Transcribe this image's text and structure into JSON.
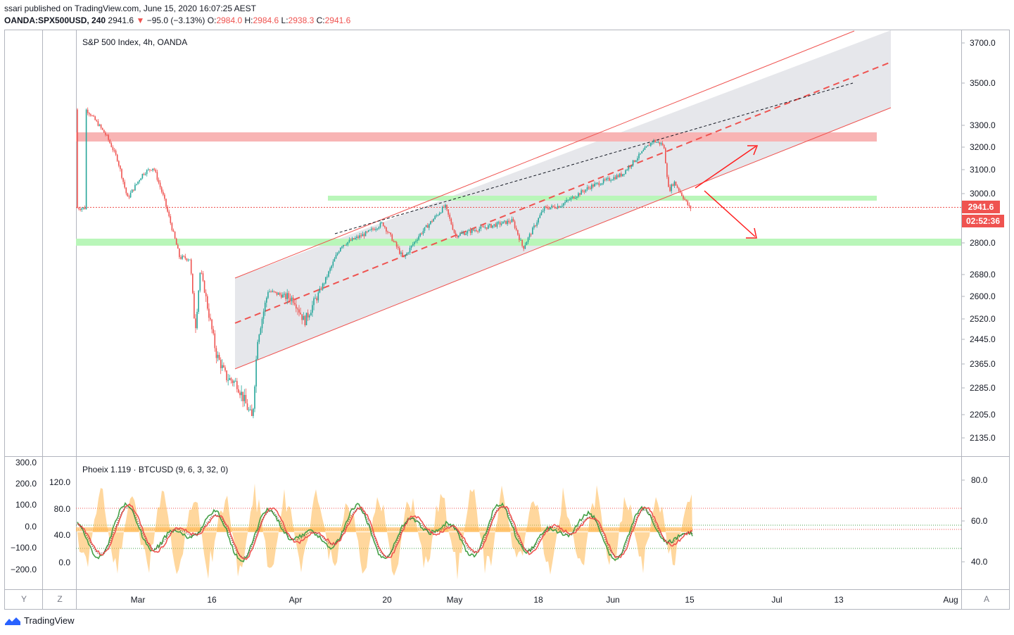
{
  "header": {
    "publish_line": "ssari published on TradingView.com, June 15, 2020 16:07:25 AEST",
    "symbol": "OANDA:SPX500USD, 240",
    "last": "2941.6",
    "change": "−95.0 (−3.13%)",
    "o_label": "O:",
    "o": "2984.0",
    "h_label": "H:",
    "h": "2984.6",
    "l_label": "L:",
    "l": "2938.3",
    "c_label": "C:",
    "c": "2941.6"
  },
  "chart_data": [
    {
      "type": "candlestick",
      "title": "S&P 500 Index, 4h, OANDA",
      "y_ticks": [
        "3700.0",
        "3500.0",
        "3300.0",
        "3200.0",
        "3100.0",
        "3000.0",
        "2800.0",
        "2680.0",
        "2600.0",
        "2520.0",
        "2445.0",
        "2365.0",
        "2285.0",
        "2205.0",
        "2135.0"
      ],
      "x_ticks": [
        "Mar",
        "16",
        "Apr",
        "20",
        "May",
        "18",
        "Jun",
        "15",
        "Jul",
        "13",
        "Aug"
      ],
      "price_tag": "2941.6",
      "countdown_tag": "02:52:36",
      "ylim": [
        2100,
        3720
      ],
      "close_path": [
        [
          "Feb 20",
          3375
        ],
        [
          "Feb 21",
          3350
        ],
        [
          "Feb 24",
          3250
        ],
        [
          "Feb 26",
          3150
        ],
        [
          "Feb 28",
          2980
        ],
        [
          "Mar 2",
          3085
        ],
        [
          "Mar 4",
          3110
        ],
        [
          "Mar 6",
          2980
        ],
        [
          "Mar 9",
          2745
        ],
        [
          "Mar 11",
          2740
        ],
        [
          "Mar 12",
          2480
        ],
        [
          "Mar 13",
          2700
        ],
        [
          "Mar 16",
          2400
        ],
        [
          "Mar 18",
          2320
        ],
        [
          "Mar 20",
          2300
        ],
        [
          "Mar 23",
          2190
        ],
        [
          "Mar 24",
          2450
        ],
        [
          "Mar 26",
          2620
        ],
        [
          "Mar 31",
          2590
        ],
        [
          "Apr 2",
          2510
        ],
        [
          "Apr 6",
          2660
        ],
        [
          "Apr 9",
          2790
        ],
        [
          "Apr 14",
          2840
        ],
        [
          "Apr 17",
          2880
        ],
        [
          "Apr 21",
          2740
        ],
        [
          "Apr 24",
          2830
        ],
        [
          "Apr 29",
          2950
        ],
        [
          "May 1",
          2830
        ],
        [
          "May 6",
          2860
        ],
        [
          "May 12",
          2890
        ],
        [
          "May 14",
          2780
        ],
        [
          "May 18",
          2940
        ],
        [
          "May 21",
          2950
        ],
        [
          "May 27",
          3030
        ],
        [
          "Jun 2",
          3080
        ],
        [
          "Jun 8",
          3230
        ],
        [
          "Jun 10",
          3210
        ],
        [
          "Jun 11",
          3010
        ],
        [
          "Jun 12",
          3050
        ],
        [
          "Jun 15",
          2941.6
        ]
      ],
      "annotations": {
        "resistance_zone": [
          3225,
          3260
        ],
        "support_zone_1": [
          2975,
          2995
        ],
        "support_zone_2": [
          2790,
          2810
        ],
        "current_price_line": 2941.6
      }
    },
    {
      "type": "line",
      "title": "Phoeix 1.119 · BTCUSD (9, 6, 3, 32, 0)",
      "left_axis_ticks": [
        "300.0",
        "200.0",
        "100.0",
        "0.0",
        "−100.0",
        "−200.0"
      ],
      "inner_axis_ticks": [
        "120.0",
        "80.0",
        "40.0",
        "0.0"
      ],
      "right_axis_ticks": [
        "80.0",
        "60.0",
        "40.0"
      ],
      "series": [
        {
          "name": "",
          "color": "#ef5350"
        },
        {
          "name": "",
          "color": "#43a047"
        },
        {
          "name": "",
          "color": "#ffb74d"
        }
      ]
    }
  ],
  "scale_buttons": {
    "y": "Y",
    "z": "Z",
    "a": "A"
  },
  "footer": {
    "brand": "TradingView"
  },
  "colors": {
    "up": "#26a69a",
    "down": "#ef5350",
    "channel": "#e6e7eb",
    "support": "#b9f6b9",
    "resistance": "#f8b4b4"
  }
}
